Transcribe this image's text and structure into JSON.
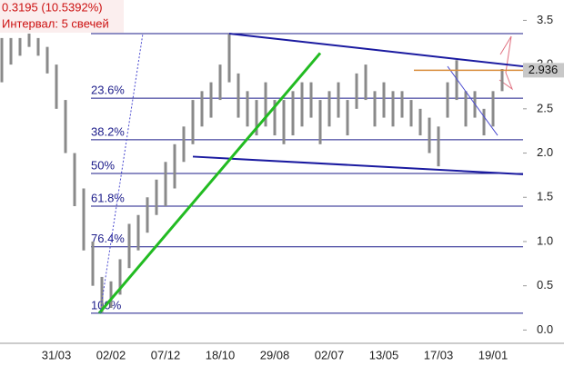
{
  "chart_data": {
    "type": "range-bars",
    "info": [
      "0.3195 (10.5392%)",
      "Интервал: 5 свечей"
    ],
    "categories": [
      null,
      null,
      null,
      null,
      null,
      null,
      "31/03",
      null,
      null,
      null,
      null,
      null,
      "02/02",
      null,
      null,
      null,
      null,
      null,
      "07/12",
      null,
      null,
      null,
      null,
      null,
      "18/10",
      null,
      null,
      null,
      null,
      null,
      "29/08",
      null,
      null,
      null,
      null,
      null,
      "02/07",
      null,
      null,
      null,
      null,
      null,
      "13/05",
      null,
      null,
      null,
      null,
      null,
      "17/03",
      null,
      null,
      null,
      null,
      null,
      "19/01",
      null
    ],
    "high": [
      3.3,
      3.3,
      3.3,
      3.35,
      3.3,
      3.2,
      3.0,
      2.6,
      2.0,
      1.6,
      1.0,
      0.6,
      0.55,
      0.8,
      1.2,
      1.3,
      1.5,
      1.7,
      1.9,
      2.1,
      2.3,
      2.6,
      2.7,
      2.8,
      3.0,
      3.35,
      2.9,
      2.7,
      2.6,
      2.8,
      2.6,
      2.6,
      2.7,
      2.8,
      2.8,
      2.6,
      2.7,
      2.8,
      2.6,
      2.9,
      3.0,
      2.7,
      2.8,
      2.7,
      2.7,
      2.6,
      2.5,
      2.4,
      2.3,
      2.8,
      3.05,
      2.7,
      2.7,
      2.5,
      2.7,
      2.95
    ],
    "low": [
      2.8,
      3.0,
      3.1,
      3.2,
      3.1,
      2.9,
      2.5,
      2.0,
      1.4,
      0.9,
      0.5,
      0.2,
      0.25,
      0.4,
      0.7,
      0.9,
      1.1,
      1.3,
      1.4,
      1.6,
      1.9,
      2.1,
      2.3,
      2.4,
      2.6,
      2.8,
      2.4,
      2.3,
      2.2,
      2.3,
      2.2,
      2.1,
      2.2,
      2.3,
      2.4,
      2.1,
      2.3,
      2.4,
      2.2,
      2.5,
      2.6,
      2.3,
      2.4,
      2.3,
      2.4,
      2.3,
      2.2,
      2.0,
      1.85,
      2.4,
      2.6,
      2.3,
      2.4,
      2.2,
      2.3,
      2.7
    ],
    "color": "#8a8a8a",
    "levels": [
      {
        "value": 3.35
      },
      {
        "label": "23.6%",
        "value": 2.62
      },
      {
        "label": "38.2%",
        "value": 2.15
      },
      {
        "label": "50%",
        "value": 1.77
      },
      {
        "label": "61.8%",
        "value": 1.4
      },
      {
        "label": "76.4%",
        "value": 0.94
      },
      {
        "label": "100%",
        "value": 0.19
      }
    ],
    "level_color": "#1c1c8a",
    "lines": [
      {
        "x1": 25,
        "y1": 3.35,
        "x2": 57.3,
        "y2": 2.98,
        "color": "#1a1aa0",
        "width": 2
      },
      {
        "x1": 21,
        "y1": 1.96,
        "x2": 57.3,
        "y2": 1.76,
        "color": "#1a1aa0",
        "width": 2
      },
      {
        "x1": 10.7,
        "y1": 0.19,
        "x2": 35,
        "y2": 3.13,
        "color": "#22bb22",
        "width": 3
      },
      {
        "x1": 10.8,
        "y1": 0.19,
        "x2": 15.5,
        "y2": 3.35,
        "color": "#4a4ad0",
        "width": 1,
        "dash": true
      },
      {
        "x1": 49,
        "y1": 2.98,
        "x2": 54.5,
        "y2": 2.2,
        "color": "#4a4ad0",
        "width": 1
      }
    ],
    "price": 2.936,
    "price_color": "#d98c3a",
    "ylim": [
      -0.15,
      3.73
    ],
    "yticks": [
      {
        "value": 0,
        "label": "0.0"
      },
      0.5,
      {
        "value": 1,
        "label": "1.0"
      },
      1.5,
      {
        "value": 2,
        "label": "2.0"
      },
      2.5,
      {
        "value": 3,
        "label": "3.0"
      },
      3.5
    ]
  }
}
